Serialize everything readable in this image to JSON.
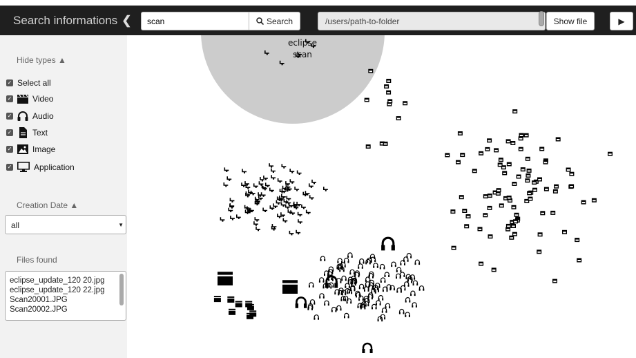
{
  "header": {
    "title": "Search informations",
    "search_value": "scan",
    "search_button": "Search",
    "path_value": "/users/path-to-folder",
    "show_file_button": "Show file"
  },
  "sidebar": {
    "hide_types_title": "Hide types",
    "types": [
      {
        "label": "Select all",
        "icon": "none"
      },
      {
        "label": "Video",
        "icon": "clapperboard-icon"
      },
      {
        "label": "Audio",
        "icon": "headphones-icon"
      },
      {
        "label": "Text",
        "icon": "document-icon"
      },
      {
        "label": "Image",
        "icon": "image-icon"
      },
      {
        "label": "Application",
        "icon": "monitor-icon"
      }
    ],
    "creation_date_title": "Creation Date",
    "creation_date_value": "all",
    "files_found_title": "Files found",
    "files": [
      "eclipse_update_120 20.jpg",
      "eclipse_update_120 22.jpg",
      "Scan20001.JPG",
      "Scan20002.JPG"
    ]
  },
  "canvas": {
    "focus_circle_labels": [
      "eclipse",
      "scan"
    ],
    "colors": {
      "circle": "#cccccc",
      "icons": "#000000"
    }
  }
}
